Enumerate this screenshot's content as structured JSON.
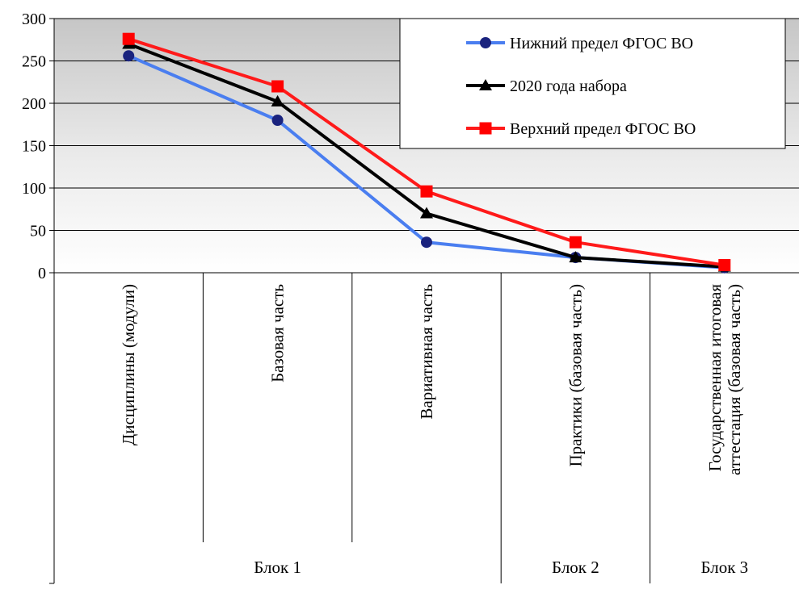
{
  "chart_data": {
    "type": "line",
    "title": "",
    "xlabel": "",
    "ylabel": "",
    "ylim": [
      0,
      300
    ],
    "yticks": [
      "0",
      "50",
      "100",
      "150",
      "200",
      "250",
      "300"
    ],
    "grid": true,
    "legend_position": "top-right",
    "categories": [
      [
        "Дисциплины (модули)"
      ],
      [
        "Базовая часть"
      ],
      [
        "Вариативная часть"
      ],
      [
        "Практики (базовая часть)"
      ],
      [
        "Государственная итоговая",
        "аттестация (базовая часть)"
      ]
    ],
    "groups": [
      {
        "label": "Блок 1",
        "span": [
          0,
          2
        ]
      },
      {
        "label": "Блок 2",
        "span": [
          3,
          3
        ]
      },
      {
        "label": "Блок 3",
        "span": [
          4,
          4
        ]
      }
    ],
    "series": [
      {
        "name": "Нижний  предел ФГОС ВО",
        "color": "#4a7ef0",
        "marker": "circle",
        "marker_color": "#1a237e",
        "values": [
          256,
          180,
          36,
          18,
          6
        ]
      },
      {
        "name": "2020 года набора",
        "color": "#000000",
        "marker": "triangle",
        "marker_color": "#000000",
        "values": [
          270,
          202,
          70,
          18,
          7
        ]
      },
      {
        "name": "Верхний  предел ФГОС ВО",
        "color": "#ff1a1a",
        "marker": "square",
        "marker_color": "#ff0000",
        "values": [
          276,
          220,
          96,
          36,
          9
        ]
      }
    ]
  }
}
